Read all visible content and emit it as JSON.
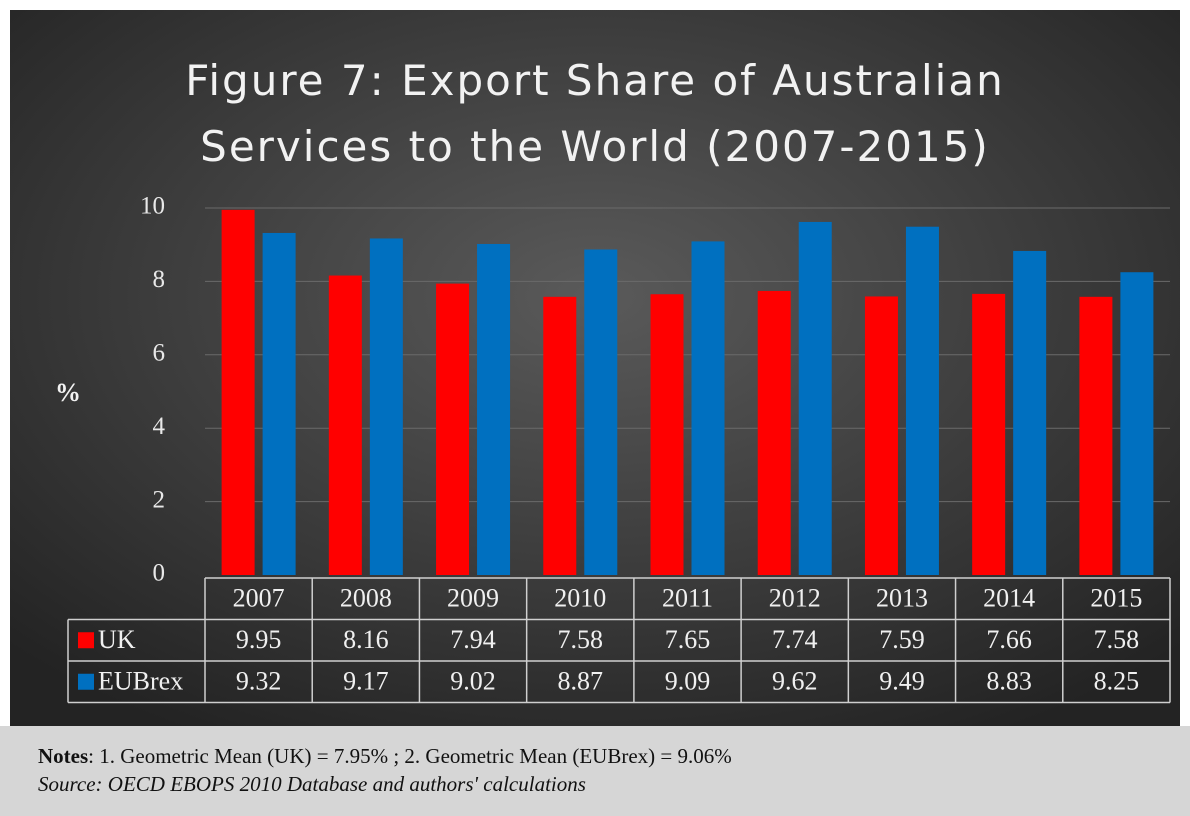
{
  "chart_data": {
    "type": "bar",
    "title": "Figure 7: Export Share of Australian\nServices to the World (2007-2015)",
    "y_label": "%",
    "categories": [
      "2007",
      "2008",
      "2009",
      "2010",
      "2011",
      "2012",
      "2013",
      "2014",
      "2015"
    ],
    "series": [
      {
        "name": "UK",
        "color": "#ff0000",
        "values": [
          9.95,
          8.16,
          7.94,
          7.58,
          7.65,
          7.74,
          7.59,
          7.66,
          7.58
        ]
      },
      {
        "name": "EUBrex",
        "color": "#0070c0",
        "values": [
          9.32,
          9.17,
          9.02,
          8.87,
          9.09,
          9.62,
          9.49,
          8.83,
          8.25
        ]
      }
    ],
    "ylim": [
      0,
      10
    ],
    "yticks": [
      0,
      2,
      4,
      6,
      8,
      10
    ],
    "grid": true,
    "notes_label": "Notes",
    "notes": ": 1. Geometric Mean (UK) = 7.95% ; 2. Geometric Mean (EUBrex) = 9.06%",
    "source": "Source: OECD EBOPS 2010 Database and authors' calculations"
  }
}
